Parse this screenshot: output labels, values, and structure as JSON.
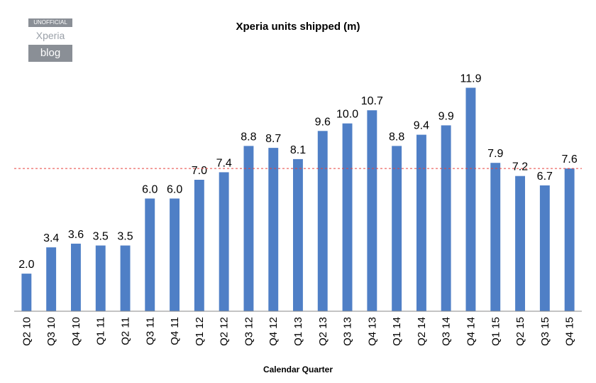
{
  "logo": {
    "top": "UNOFFICIAL",
    "middle": "Xperia",
    "bottom": "blog"
  },
  "chart_data": {
    "type": "bar",
    "title": "Xperia units shipped (m)",
    "xlabel": "Calendar Quarter",
    "ylabel": "",
    "ylim": [
      0,
      14
    ],
    "grid": false,
    "categories": [
      "Q2 10",
      "Q3 10",
      "Q4 10",
      "Q1 11",
      "Q2 11",
      "Q3 11",
      "Q4 11",
      "Q1 12",
      "Q2 12",
      "Q3 12",
      "Q4 12",
      "Q1 13",
      "Q2 13",
      "Q3 13",
      "Q4 13",
      "Q1 14",
      "Q2 14",
      "Q3 14",
      "Q4 14",
      "Q1 15",
      "Q2 15",
      "Q3 15",
      "Q4 15"
    ],
    "values": [
      2.0,
      3.4,
      3.6,
      3.5,
      3.5,
      6.0,
      6.0,
      7.0,
      7.4,
      8.8,
      8.7,
      8.1,
      9.6,
      10.0,
      10.7,
      8.8,
      9.4,
      9.9,
      11.9,
      7.9,
      7.2,
      6.7,
      7.6
    ],
    "data_labels": [
      "2.0",
      "3.4",
      "3.6",
      "3.5",
      "3.5",
      "6.0",
      "6.0",
      "7.0",
      "7.4",
      "8.8",
      "8.7",
      "8.1",
      "9.6",
      "10.0",
      "10.7",
      "8.8",
      "9.4",
      "9.9",
      "11.9",
      "7.9",
      "7.2",
      "6.7",
      "7.6"
    ],
    "reference_line": {
      "value": 7.6,
      "style": "dashed",
      "color": "#e8423c"
    },
    "bar_color": "#4f7fc6"
  }
}
